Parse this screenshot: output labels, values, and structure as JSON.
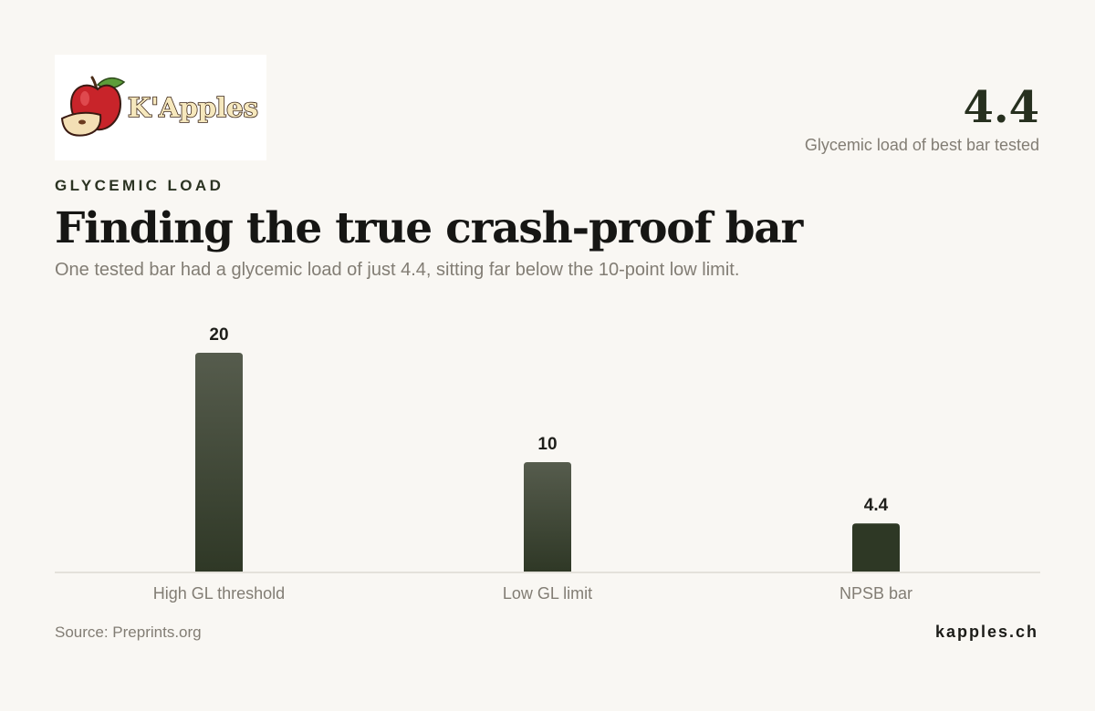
{
  "brand": {
    "logo_text": "K'Apples",
    "site": "kapples.ch"
  },
  "kpi": {
    "value": "4.4",
    "label": "Glycemic load of best bar tested"
  },
  "eyebrow": "GLYCEMIC LOAD",
  "title": "Finding the true crash-proof bar",
  "subtitle": "One tested bar had a glycemic load of just 4.4, sitting far below the 10-point low limit.",
  "source": "Source: Preprints.org",
  "colors": {
    "background": "#f9f7f3",
    "bar_top": "#565c4d",
    "bar_bottom": "#2f3826",
    "highlight_bar": "#2e3825",
    "axis": "#dedad2"
  },
  "chart_data": {
    "type": "bar",
    "categories": [
      "High GL threshold",
      "Low GL limit",
      "NPSB bar"
    ],
    "values": [
      20,
      10,
      4.4
    ],
    "value_labels": [
      "20",
      "10",
      "4.4"
    ],
    "highlight_index": 2,
    "ylim": [
      0,
      20
    ],
    "grid": false,
    "legend": "none"
  }
}
